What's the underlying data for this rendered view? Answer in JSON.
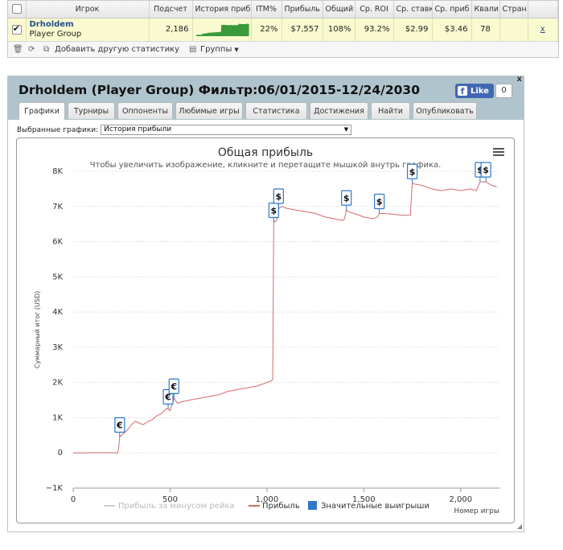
{
  "stats_table": {
    "headers": [
      "Игрок",
      "Подсчет",
      "История приб",
      "ITM%",
      "Прибыль",
      "Общий",
      "Ср. ROI",
      "Ср. ставк",
      "Ср. приб",
      "Квали",
      "Стран"
    ],
    "row": {
      "player_name": "Drholdem",
      "player_group": "Player Group",
      "count": "2,186",
      "itm": "22%",
      "profit": "$7,557",
      "total": "108%",
      "avg_roi": "93.2%",
      "avg_stake": "$2.99",
      "avg_profit": "$3.46",
      "qualified": "78",
      "country": "",
      "action": "x"
    },
    "sparkline_color": "#3a9a3a",
    "row_background": "#fafad0"
  },
  "stats_toolbar": {
    "add_stats": "Добавить другую статистику",
    "groups": "Группы",
    "icons": [
      "trash-icon",
      "refresh-icon",
      "copy-icon",
      "folder-icon"
    ]
  },
  "window": {
    "title": "Drholdem (Player Group) Фильтр:06/01/2015-12/24/2030",
    "fb_like": "Like",
    "fb_count": "0",
    "close": "x",
    "header_color": "#b0c4cd",
    "tabs": [
      "Графики",
      "Турниры",
      "Оппоненты",
      "Любимые игры",
      "Статистика",
      "Достижения",
      "Найти",
      "Опубликовать"
    ],
    "active_tab": 0,
    "graph_select_label": "Выбранные графики:",
    "graph_select_value": "История прибыли"
  },
  "chart_data": {
    "type": "line",
    "title": "Общая прибыль",
    "subtitle": "Чтобы увеличить изображение, кликните и перетащите мышкой внутрь графика.",
    "xlabel": "Номер игры",
    "ylabel": "Суммарный итог (USD)",
    "xlim": [
      0,
      2200
    ],
    "ylim": [
      -1000,
      8000
    ],
    "x_ticks": [
      0,
      500,
      1000,
      1500,
      2000
    ],
    "x_tick_labels": [
      "0",
      "500",
      "1,000",
      "1,500",
      "2,000"
    ],
    "y_ticks": [
      -1000,
      0,
      1000,
      2000,
      3000,
      4000,
      5000,
      6000,
      7000,
      8000
    ],
    "y_tick_labels": [
      "−1K",
      "0",
      "1K",
      "2K",
      "3K",
      "4K",
      "5K",
      "6K",
      "7K",
      "8K"
    ],
    "grid": true,
    "legend_position": "bottom",
    "series": [
      {
        "name": "Прибыль за минусом рейка",
        "color": "#cccccc",
        "values": []
      },
      {
        "name": "Прибыль",
        "color": "#d46a6a",
        "points": [
          [
            0,
            0
          ],
          [
            150,
            5
          ],
          [
            230,
            0
          ],
          [
            235,
            150
          ],
          [
            240,
            450
          ],
          [
            260,
            550
          ],
          [
            280,
            650
          ],
          [
            300,
            800
          ],
          [
            320,
            900
          ],
          [
            340,
            850
          ],
          [
            360,
            800
          ],
          [
            390,
            900
          ],
          [
            410,
            950
          ],
          [
            430,
            1050
          ],
          [
            450,
            1100
          ],
          [
            470,
            1200
          ],
          [
            480,
            1250
          ],
          [
            490,
            1250
          ],
          [
            500,
            1200
          ],
          [
            520,
            1550
          ],
          [
            540,
            1400
          ],
          [
            560,
            1450
          ],
          [
            600,
            1500
          ],
          [
            650,
            1550
          ],
          [
            700,
            1600
          ],
          [
            750,
            1650
          ],
          [
            800,
            1750
          ],
          [
            850,
            1800
          ],
          [
            900,
            1850
          ],
          [
            950,
            1900
          ],
          [
            1000,
            2000
          ],
          [
            1025,
            2050
          ],
          [
            1030,
            2100
          ],
          [
            1035,
            6550
          ],
          [
            1050,
            6600
          ],
          [
            1060,
            6950
          ],
          [
            1080,
            7000
          ],
          [
            1100,
            6950
          ],
          [
            1150,
            6900
          ],
          [
            1200,
            6850
          ],
          [
            1250,
            6800
          ],
          [
            1300,
            6700
          ],
          [
            1350,
            6650
          ],
          [
            1390,
            6600
          ],
          [
            1400,
            6650
          ],
          [
            1410,
            6900
          ],
          [
            1420,
            6850
          ],
          [
            1450,
            6800
          ],
          [
            1500,
            6700
          ],
          [
            1550,
            6650
          ],
          [
            1570,
            6700
          ],
          [
            1580,
            6800
          ],
          [
            1600,
            6800
          ],
          [
            1650,
            6780
          ],
          [
            1700,
            6750
          ],
          [
            1740,
            6750
          ],
          [
            1750,
            7650
          ],
          [
            1800,
            7600
          ],
          [
            1850,
            7500
          ],
          [
            1900,
            7450
          ],
          [
            1950,
            7500
          ],
          [
            2000,
            7450
          ],
          [
            2050,
            7500
          ],
          [
            2080,
            7450
          ],
          [
            2100,
            7700
          ],
          [
            2130,
            7700
          ],
          [
            2160,
            7600
          ],
          [
            2186,
            7557
          ]
        ]
      },
      {
        "name": "Значительные выигрыши",
        "color": "#2f78c8",
        "markers": [
          {
            "x": 240,
            "y": 450,
            "symbol": "€"
          },
          {
            "x": 490,
            "y": 1250,
            "symbol": "€"
          },
          {
            "x": 520,
            "y": 1550,
            "symbol": "€"
          },
          {
            "x": 1035,
            "y": 6550,
            "symbol": "$"
          },
          {
            "x": 1060,
            "y": 6950,
            "symbol": "$"
          },
          {
            "x": 1410,
            "y": 6900,
            "symbol": "$"
          },
          {
            "x": 1580,
            "y": 6800,
            "symbol": "$"
          },
          {
            "x": 1750,
            "y": 7650,
            "symbol": "$"
          },
          {
            "x": 2100,
            "y": 7700,
            "symbol": "$"
          },
          {
            "x": 2130,
            "y": 7700,
            "symbol": "$"
          }
        ]
      }
    ]
  }
}
